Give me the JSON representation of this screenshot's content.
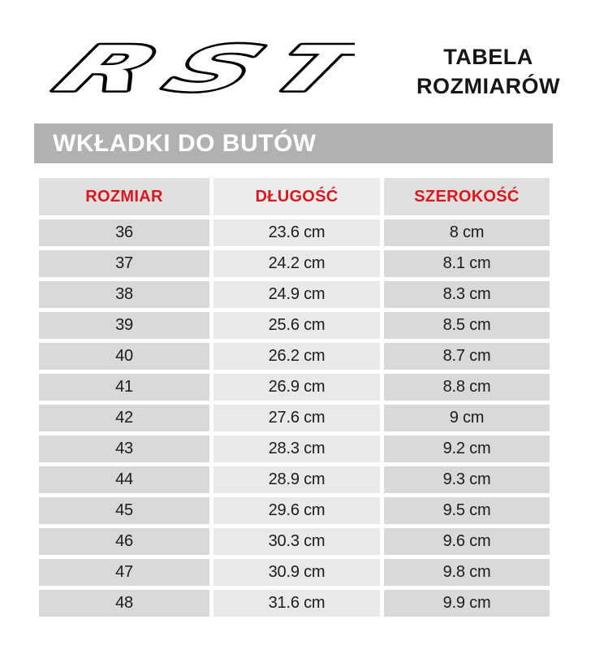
{
  "brand": {
    "logo_text": "RST"
  },
  "page_title": {
    "line1": "TABELA",
    "line2": "ROZMIARÓW"
  },
  "section_banner": {
    "label": "WKŁADKI DO BUTÓW"
  },
  "chart_data": {
    "type": "table",
    "title": "WKŁADKI DO BUTÓW",
    "columns": [
      "ROZMIAR",
      "DŁUGOŚĆ",
      "SZEROKOŚĆ"
    ],
    "rows": [
      [
        "36",
        "23.6 cm",
        "8 cm"
      ],
      [
        "37",
        "24.2 cm",
        "8.1 cm"
      ],
      [
        "38",
        "24.9 cm",
        "8.3 cm"
      ],
      [
        "39",
        "25.6 cm",
        "8.5 cm"
      ],
      [
        "40",
        "26.2 cm",
        "8.7 cm"
      ],
      [
        "41",
        "26.9 cm",
        "8.8 cm"
      ],
      [
        "42",
        "27.6 cm",
        "9 cm"
      ],
      [
        "43",
        "28.3 cm",
        "9.2 cm"
      ],
      [
        "44",
        "28.9 cm",
        "9.3 cm"
      ],
      [
        "45",
        "29.6 cm",
        "9.5 cm"
      ],
      [
        "46",
        "30.3 cm",
        "9.6 cm"
      ],
      [
        "47",
        "30.9 cm",
        "9.8 cm"
      ],
      [
        "48",
        "31.6 cm",
        "9.9 cm"
      ]
    ]
  },
  "colors": {
    "accent_red": "#d7191f",
    "banner_gray": "#b1b1b1",
    "cell_gray": "#d9d9d9",
    "cell_light_gray": "#e9e9e9",
    "title_black": "#161616"
  }
}
